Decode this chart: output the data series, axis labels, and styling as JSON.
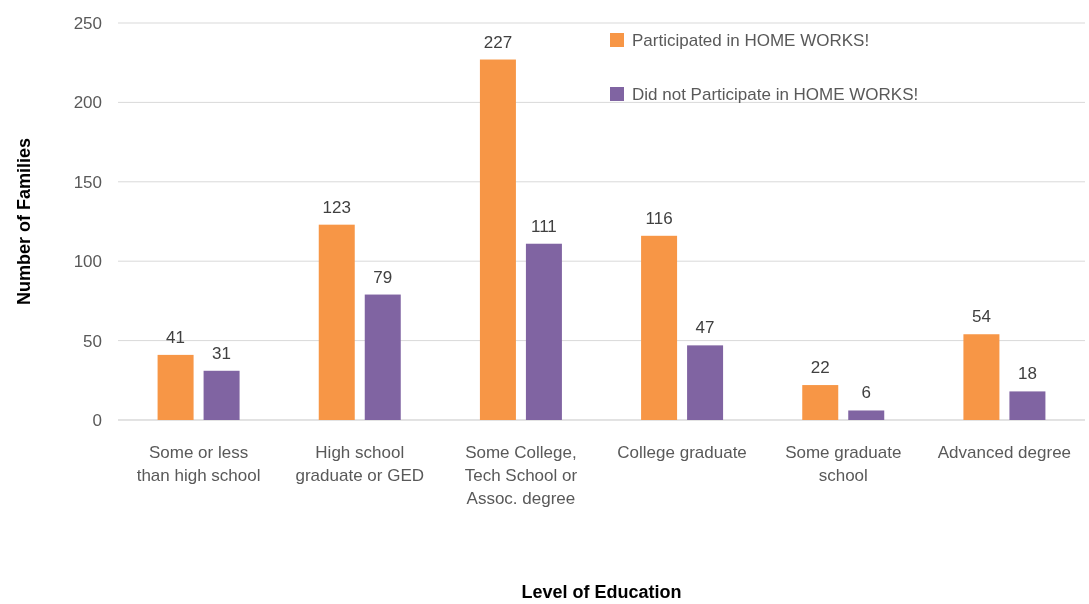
{
  "chart_data": {
    "type": "bar",
    "xlabel": "Level of Education",
    "ylabel": "Number of Families",
    "categories": [
      "Some or less than high school",
      "High school graduate or GED",
      "Some College, Tech School or Assoc. degree",
      "College graduate",
      "Some graduate school",
      "Advanced degree"
    ],
    "series": [
      {
        "name": "Participated in HOME WORKS!",
        "color": "#f79646",
        "values": [
          41,
          123,
          227,
          116,
          22,
          54
        ]
      },
      {
        "name": "Did not Participate in HOME WORKS!",
        "color": "#8064a2",
        "values": [
          31,
          79,
          111,
          47,
          6,
          18
        ]
      }
    ],
    "ylim": [
      0,
      250
    ],
    "yticks": [
      0,
      50,
      100,
      150,
      200,
      250
    ],
    "grid": "y",
    "legend": "top right",
    "data_labels": true
  }
}
